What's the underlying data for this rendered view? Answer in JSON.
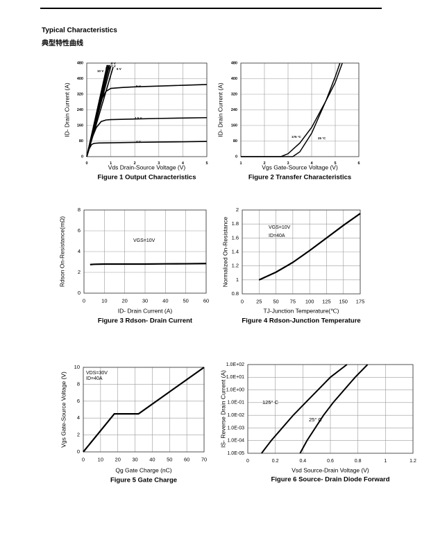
{
  "header": {
    "title": "Typical Characteristics",
    "subtitle": "典型特性曲线"
  },
  "chart_data": [
    {
      "type": "line",
      "title": "Figure 1 Output Characteristics",
      "xlabel": "Vds Drain-Source Voltage (V)",
      "ylabel": "ID- Drain Current (A)",
      "xlim": [
        0,
        5
      ],
      "xticks": [
        0,
        1,
        2,
        3,
        4,
        5
      ],
      "ylim": [
        0,
        480
      ],
      "yticks": [
        0,
        80,
        160,
        240,
        320,
        400,
        480
      ],
      "grid": true,
      "annotations": [
        "4 V",
        "4.5 V",
        "5 V",
        "6 V",
        "7 V",
        "8 V",
        "9 V",
        "10 V"
      ],
      "series": [
        {
          "color": "#000000",
          "x": [
            0,
            0.1,
            0.2,
            0.3,
            0.5,
            1,
            2,
            3,
            4,
            5
          ],
          "values": [
            0,
            40,
            62,
            68,
            70,
            71,
            73,
            75,
            76,
            78
          ]
        },
        {
          "color": "#000000",
          "x": [
            0,
            0.2,
            0.4,
            0.6,
            0.8,
            1,
            2,
            3,
            4,
            5
          ],
          "values": [
            0,
            90,
            150,
            180,
            188,
            190,
            193,
            196,
            198,
            200
          ]
        },
        {
          "color": "#000000",
          "x": [
            0,
            0.2,
            0.4,
            0.6,
            0.8,
            1,
            1.5,
            2,
            3,
            4,
            5
          ],
          "values": [
            0,
            110,
            210,
            290,
            335,
            350,
            355,
            358,
            362,
            366,
            370
          ]
        },
        {
          "color": "#000000",
          "x": [
            0,
            1.1
          ],
          "values": [
            0,
            460
          ]
        },
        {
          "color": "#000000",
          "x": [
            0,
            1.0
          ],
          "values": [
            0,
            465
          ]
        },
        {
          "color": "#000000",
          "x": [
            0,
            0.95
          ],
          "values": [
            0,
            470
          ]
        },
        {
          "color": "#000000",
          "x": [
            0,
            0.9
          ],
          "values": [
            0,
            470
          ]
        },
        {
          "color": "#000000",
          "x": [
            0,
            0.85
          ],
          "values": [
            0,
            470
          ]
        }
      ]
    },
    {
      "type": "line",
      "title": "Figure 2 Transfer Characteristics",
      "xlabel": "Vgs Gate-Source Voltage (V)",
      "ylabel": "ID- Drain Current (A)",
      "xlim": [
        1,
        6
      ],
      "xticks": [
        1,
        2,
        3,
        4,
        5,
        6
      ],
      "ylim": [
        0,
        480
      ],
      "yticks": [
        0,
        80,
        160,
        240,
        320,
        400,
        480
      ],
      "grid": true,
      "annotations": [
        "175 °C",
        "25 °C"
      ],
      "series": [
        {
          "color": "#000000",
          "x": [
            1,
            2.7,
            3,
            3.5,
            4,
            4.6,
            5,
            5.3
          ],
          "values": [
            0,
            0,
            15,
            70,
            150,
            285,
            380,
            480
          ]
        },
        {
          "color": "#000000",
          "x": [
            1,
            3.2,
            3.5,
            4,
            4.6,
            5,
            5.2
          ],
          "values": [
            0,
            0,
            25,
            120,
            285,
            410,
            480
          ]
        }
      ]
    },
    {
      "type": "line",
      "title": "Figure 3 Rdson- Drain Current",
      "xlabel": "ID- Drain Current (A)",
      "ylabel": "Rdson On-Resistance(mΩ)",
      "xlim": [
        0,
        60
      ],
      "xticks": [
        0,
        10,
        20,
        30,
        40,
        50,
        60
      ],
      "ylim": [
        0,
        8
      ],
      "yticks": [
        0,
        2,
        4,
        6,
        8
      ],
      "grid": true,
      "annotations": [
        "VGS=10V"
      ],
      "series": [
        {
          "color": "#000000",
          "x": [
            3,
            5,
            10,
            20,
            30,
            40,
            50,
            60
          ],
          "values": [
            2.75,
            2.78,
            2.8,
            2.8,
            2.8,
            2.82,
            2.83,
            2.85
          ]
        }
      ]
    },
    {
      "type": "line",
      "title": "Figure 4 Rdson-Junction Temperature",
      "xlabel": "TJ-Junction Temperature(℃)",
      "ylabel": "Normalized On-Resistance",
      "xlim": [
        0,
        175
      ],
      "xticks": [
        0,
        25,
        50,
        75,
        100,
        125,
        150,
        175
      ],
      "ylim": [
        0.8,
        2
      ],
      "yticks": [
        0.8,
        1,
        1.2,
        1.4,
        1.6,
        1.8,
        2
      ],
      "grid": true,
      "annotations": [
        "VGS=10V",
        "ID=40A"
      ],
      "series": [
        {
          "color": "#000000",
          "x": [
            25,
            50,
            75,
            100,
            125,
            150,
            175
          ],
          "values": [
            1,
            1.11,
            1.25,
            1.42,
            1.6,
            1.78,
            1.95
          ]
        }
      ]
    },
    {
      "type": "line",
      "title": "Figure 5 Gate Charge",
      "xlabel": "Qg Gate Charge (nC)",
      "ylabel": "Vgs Gate-Source Voltage (V)",
      "xlim": [
        0,
        70
      ],
      "xticks": [
        0,
        10,
        20,
        30,
        40,
        50,
        60,
        70
      ],
      "ylim": [
        0,
        10
      ],
      "yticks": [
        0,
        2,
        4,
        6,
        8,
        10
      ],
      "grid": true,
      "annotations": [
        "VDS=30V",
        "ID=40A"
      ],
      "series": [
        {
          "color": "#000000",
          "x": [
            0,
            18,
            32,
            70
          ],
          "values": [
            0,
            4.5,
            4.5,
            10
          ]
        }
      ]
    },
    {
      "type": "line",
      "title": "Figure 6 Source- Drain Diode Forward",
      "xlabel": "Vsd Source-Drain Voltage (V)",
      "ylabel": "IS- Reverse Drain Current (A)",
      "xlim": [
        0,
        1.2
      ],
      "xticks": [
        0,
        0.2,
        0.4,
        0.6,
        0.8,
        1,
        1.2
      ],
      "ylim": [
        1e-05,
        100
      ],
      "ylog": true,
      "yticks": [
        {
          "value": 1e-05,
          "label": "1.0E-05"
        },
        {
          "value": 0.0001,
          "label": "1.0E-04"
        },
        {
          "value": 0.001,
          "label": "1.0E-03"
        },
        {
          "value": 0.01,
          "label": "1.0E-02"
        },
        {
          "value": 0.1,
          "label": "1.0E-01"
        },
        {
          "value": 1,
          "label": "1.0E+00"
        },
        {
          "value": 10,
          "label": "1.0E+01"
        },
        {
          "value": 100,
          "label": "1.0E+02"
        }
      ],
      "grid": true,
      "annotations": [
        "125° C",
        "25° C"
      ],
      "series": [
        {
          "color": "#000000",
          "x": [
            0.1,
            0.17,
            0.25,
            0.33,
            0.42,
            0.51,
            0.6,
            0.72
          ],
          "values": [
            1e-05,
            0.0001,
            0.001,
            0.01,
            0.1,
            1,
            10,
            100
          ]
        },
        {
          "color": "#000000",
          "x": [
            0.38,
            0.43,
            0.49,
            0.55,
            0.62,
            0.7,
            0.78,
            0.87
          ],
          "values": [
            1e-05,
            0.0001,
            0.001,
            0.01,
            0.1,
            1,
            10,
            100
          ]
        }
      ]
    }
  ]
}
